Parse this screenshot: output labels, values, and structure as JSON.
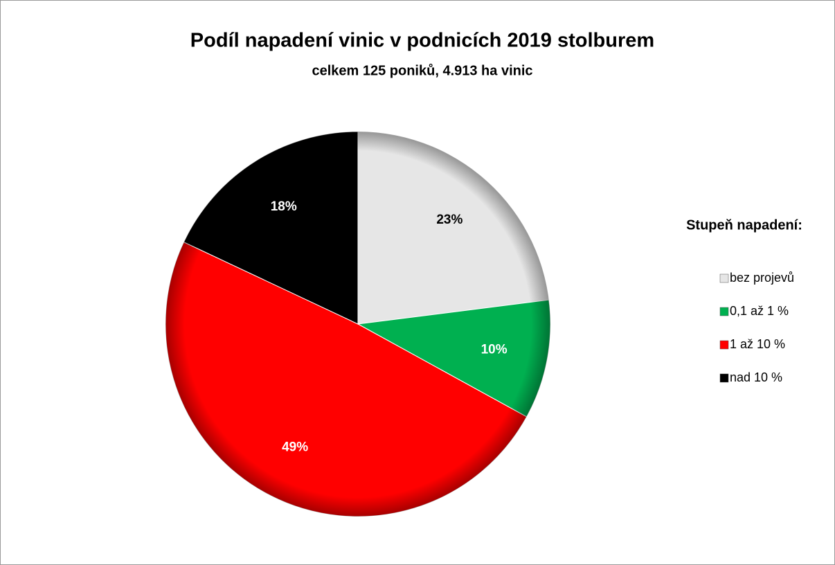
{
  "chart_data": {
    "type": "pie",
    "title": "Podíl napadení vinic v podnicích 2019 stolburem",
    "subtitle": "celkem 125 poniků, 4.913 ha vinic",
    "legend_title": "Stupeň napadení:",
    "categories": [
      "bez projevů",
      "0,1 až 1 %",
      "1 až 10 %",
      "nad 10 %"
    ],
    "values": [
      23,
      10,
      49,
      18
    ],
    "value_labels": [
      "23%",
      "10%",
      "49%",
      "18%"
    ],
    "colors": [
      "#e6e6e6",
      "#00b050",
      "#ff0000",
      "#000000"
    ],
    "label_colors": [
      "#000000",
      "#ffffff",
      "#ffffff",
      "#ffffff"
    ],
    "legend": "right"
  }
}
